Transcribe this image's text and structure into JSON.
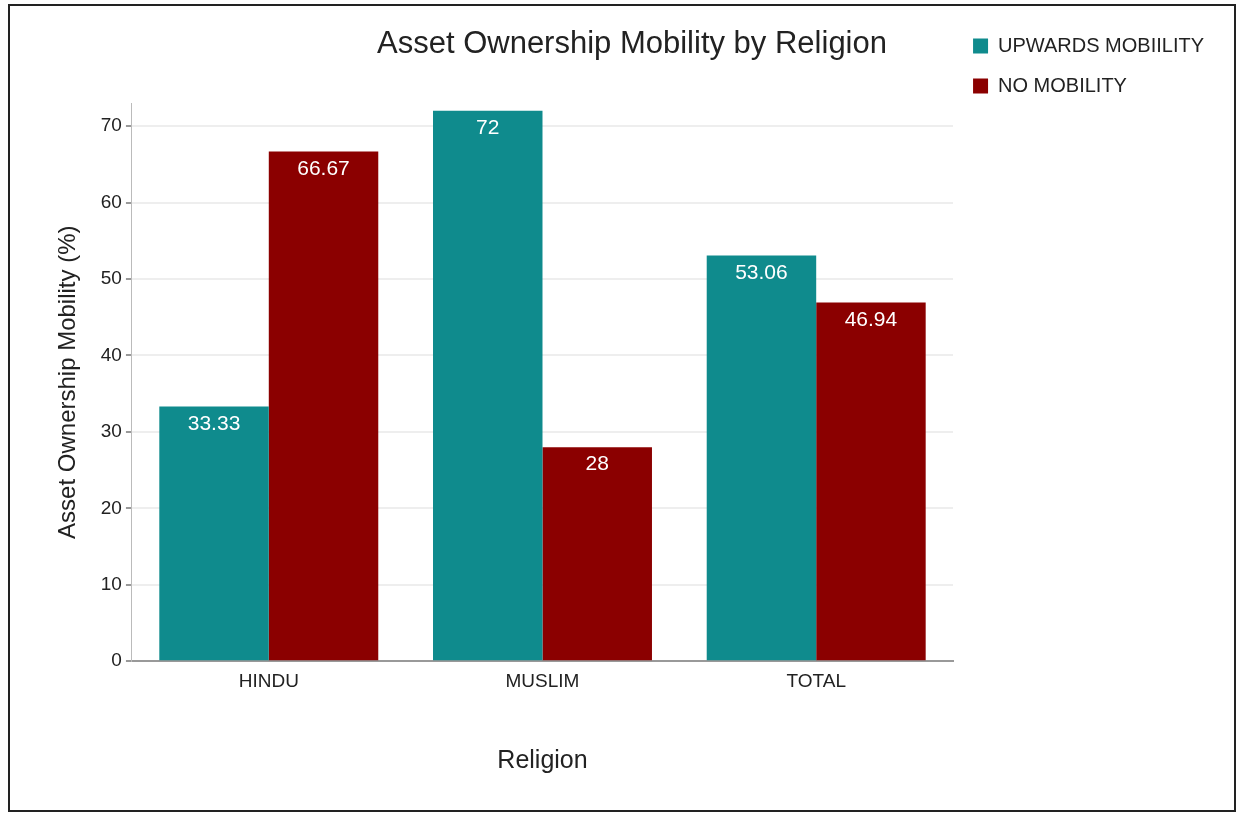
{
  "chart_data": {
    "type": "bar",
    "title": "Asset Ownership Mobility by Religion",
    "xlabel": "Religion",
    "ylabel": "Asset Ownership Mobility (%)",
    "categories": [
      "HINDU",
      "MUSLIM",
      "TOTAL"
    ],
    "series": [
      {
        "name": "UPWARDS MOBIILITY",
        "color": "#0f8b8d",
        "values": [
          33.33,
          72,
          53.06
        ]
      },
      {
        "name": "NO MOBILITY",
        "color": "#8b0000",
        "values": [
          66.67,
          28,
          46.94
        ]
      }
    ],
    "ylim": [
      0,
      73
    ],
    "yticks": [
      0,
      10,
      20,
      30,
      40,
      50,
      60,
      70
    ],
    "grid": "y",
    "legend": "top right",
    "data_labels": true
  }
}
